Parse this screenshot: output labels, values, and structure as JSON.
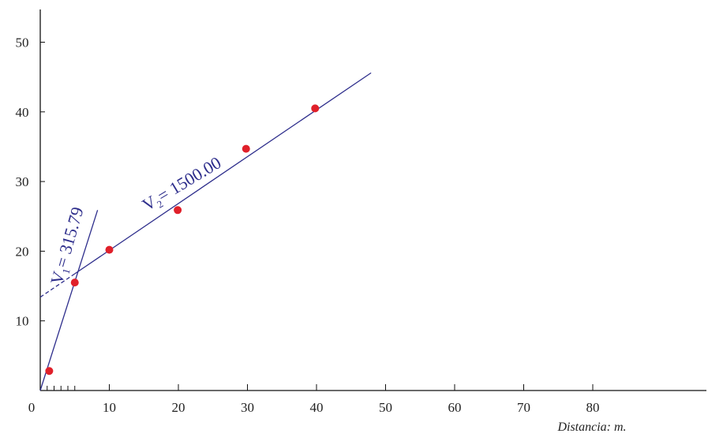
{
  "chart_data": {
    "type": "scatter",
    "x": [
      1.3,
      5,
      10,
      19.9,
      29.8,
      39.8
    ],
    "values": [
      2.8,
      15.5,
      20.2,
      25.9,
      34.7,
      40.5
    ],
    "color": "#e0202a",
    "xlim": [
      0,
      96
    ],
    "ylim": [
      0,
      54.6
    ],
    "xticks": [
      0,
      10,
      20,
      30,
      40,
      50,
      60,
      70,
      80
    ],
    "xminorticks": [
      1,
      2,
      3,
      4,
      5
    ],
    "yticks": [
      10,
      20,
      30,
      40,
      50
    ],
    "xlabel": "Distancia:  m.",
    "fits": [
      {
        "x": [
          0,
          8.3
        ],
        "y": [
          0,
          25.9
        ],
        "color": "#2e2e8c",
        "label": [
          "V",
          "1",
          "= 315.79"
        ]
      },
      {
        "x": [
          5,
          47.9
        ],
        "y": [
          16.76,
          45.6
        ],
        "color": "#2e2e8c",
        "label": [
          "V",
          "2",
          "= 1500.00"
        ]
      },
      {
        "x": [
          0,
          5
        ],
        "y": [
          13.4,
          16.76
        ],
        "color": "#2e2e8c",
        "dashed": true
      }
    ]
  }
}
